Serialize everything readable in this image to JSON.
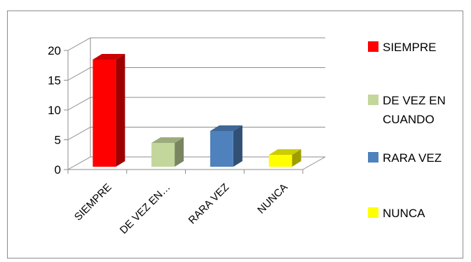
{
  "chart_data": {
    "type": "bar",
    "categories": [
      "SIEMPRE",
      "DE VEZ EN CUANDO",
      "RARA VEZ",
      "NUNCA"
    ],
    "category_tick_labels": [
      "SIEMPRE",
      "DE VEZ EN…",
      "RARA VEZ",
      "NUNCA"
    ],
    "values": [
      18,
      4,
      6,
      2
    ],
    "colors": [
      "#ff0000",
      "#c3d69b",
      "#4f81bd",
      "#ffff00"
    ],
    "title": "",
    "xlabel": "",
    "ylabel": "",
    "ylim": [
      0,
      20
    ],
    "yticks": [
      0,
      5,
      10,
      15,
      20
    ],
    "three_d": true,
    "grid": true,
    "legend_placement": "right",
    "legend": [
      {
        "lines": [
          "SIEMPRE"
        ],
        "color": "#ff0000"
      },
      {
        "lines": [
          "DE VEZ EN",
          "CUANDO"
        ],
        "color": "#c3d69b"
      },
      {
        "lines": [
          "RARA VEZ"
        ],
        "color": "#4f81bd"
      },
      {
        "lines": [
          "NUNCA"
        ],
        "color": "#ffff00"
      }
    ]
  }
}
